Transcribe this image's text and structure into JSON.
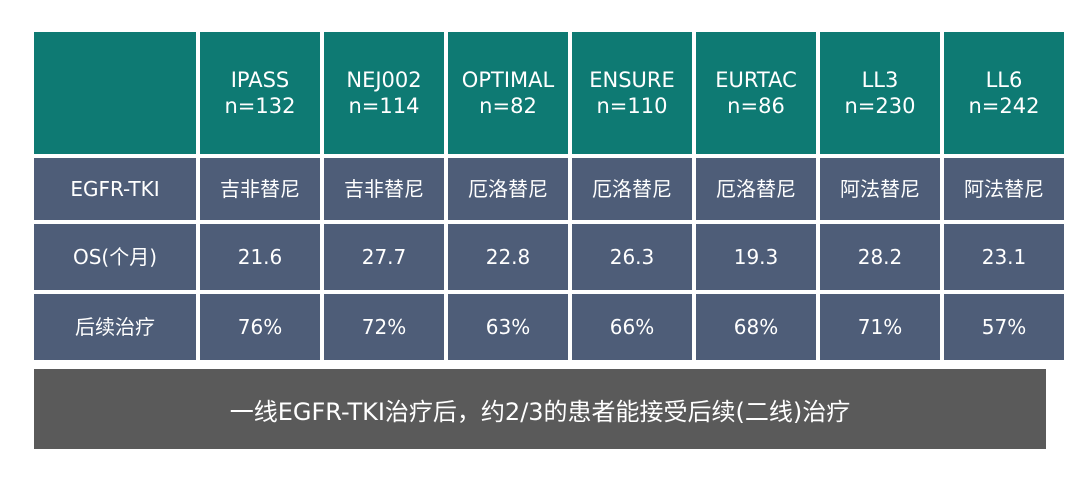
{
  "table": {
    "columns": [
      {
        "name": "IPASS",
        "n": "n=132"
      },
      {
        "name": "NEJ002",
        "n": "n=114"
      },
      {
        "name": "OPTIMAL",
        "n": "n=82"
      },
      {
        "name": "ENSURE",
        "n": "n=110"
      },
      {
        "name": "EURTAC",
        "n": "n=86"
      },
      {
        "name": "LL3",
        "n": "n=230"
      },
      {
        "name": "LL6",
        "n": "n=242"
      }
    ],
    "rows": [
      {
        "label": "EGFR-TKI",
        "values": [
          "吉非替尼",
          "吉非替尼",
          "厄洛替尼",
          "厄洛替尼",
          "厄洛替尼",
          "阿法替尼",
          "阿法替尼"
        ]
      },
      {
        "label": "OS(个月)",
        "values": [
          "21.6",
          "27.7",
          "22.8",
          "26.3",
          "19.3",
          "28.2",
          "23.1"
        ]
      },
      {
        "label": "后续治疗",
        "values": [
          "76%",
          "72%",
          "63%",
          "66%",
          "68%",
          "71%",
          "57%"
        ]
      }
    ]
  },
  "footer": {
    "text": "一线EGFR-TKI治疗后，约2/3的患者能接受后续(二线)治疗"
  },
  "colors": {
    "header_bg": "#0e7a73",
    "body_bg": "#4e5d78",
    "footer_bg": "#5a5a5a",
    "text": "#ffffff"
  }
}
